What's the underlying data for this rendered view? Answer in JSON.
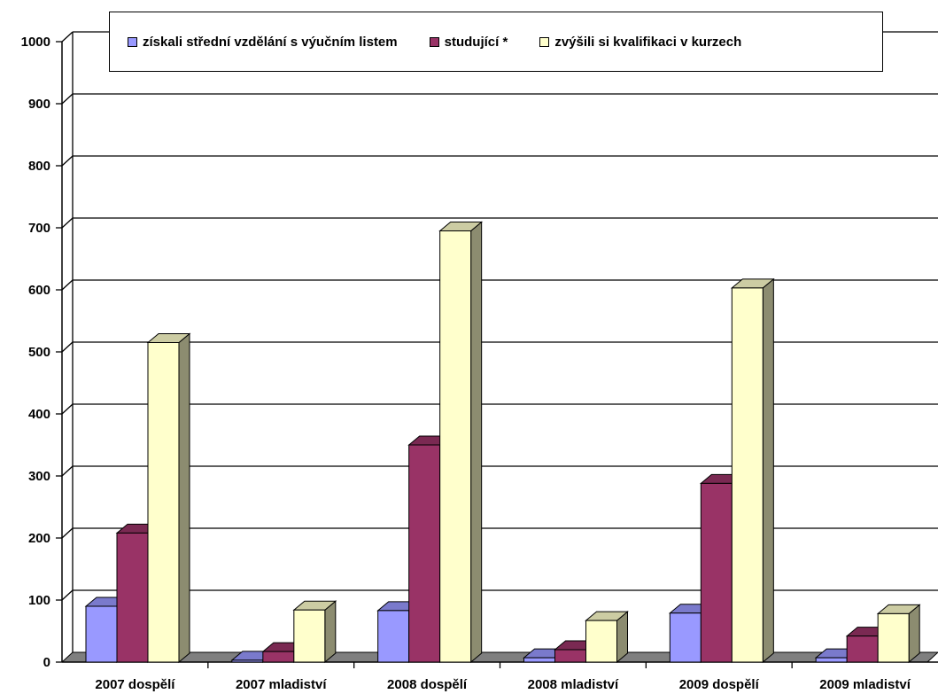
{
  "chart_data": {
    "type": "bar",
    "categories": [
      "2007 dospělí",
      "2007 mladiství",
      "2008 dospělí",
      "2008 mladiství",
      "2009 dospělí",
      "2009 mladiství"
    ],
    "series": [
      {
        "name": "získali střední vzdělání s výučním listem",
        "values": [
          90,
          3,
          83,
          7,
          79,
          7
        ],
        "color": "#9999ff"
      },
      {
        "name": "studující *",
        "values": [
          208,
          17,
          350,
          20,
          288,
          42
        ],
        "color": "#993366"
      },
      {
        "name": "zvýšili si kvalifikaci v kurzech",
        "values": [
          515,
          84,
          695,
          67,
          603,
          78
        ],
        "color": "#ffffcc"
      }
    ],
    "ylim": [
      0,
      1000
    ],
    "yticks": [
      "0",
      "100",
      "200",
      "300",
      "400",
      "500",
      "600",
      "700",
      "800",
      "900",
      "1000"
    ],
    "grid": true,
    "legend_position": "top",
    "three_d": true
  }
}
